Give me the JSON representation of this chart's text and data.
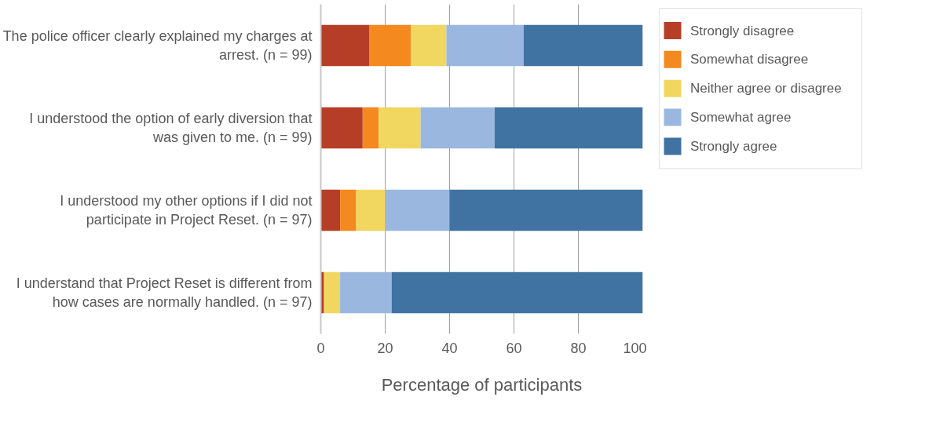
{
  "chart_data": {
    "type": "bar",
    "orientation": "horizontal",
    "stacked": true,
    "categories": [
      "The police officer clearly explained my charges at\narrest. (n = 99)",
      "I understood the option of early diversion that\nwas given to me. (n = 99)",
      "I understood my other options if I did not\nparticipate in Project Reset. (n = 97)",
      "I understand that Project Reset is different from\nhow cases are normally handled. (n = 97)"
    ],
    "series": [
      {
        "name": "Strongly disagree",
        "color": "#b63e26",
        "values": [
          15,
          13,
          6,
          1
        ]
      },
      {
        "name": "Somewhat disagree",
        "color": "#f3891f",
        "values": [
          13,
          5,
          5,
          0
        ]
      },
      {
        "name": "Neither agree or disagree",
        "color": "#f1d75f",
        "values": [
          11,
          13,
          9,
          5
        ]
      },
      {
        "name": "Somewhat agree",
        "color": "#9ab8df",
        "values": [
          24,
          23,
          20,
          16
        ]
      },
      {
        "name": "Strongly agree",
        "color": "#4073a1",
        "values": [
          37,
          46,
          60,
          78
        ]
      }
    ],
    "xlim": [
      0,
      100
    ],
    "xticks": [
      0,
      20,
      40,
      60,
      80,
      100
    ],
    "xlabel": "Percentage of participants",
    "grid": "x",
    "legend": "right"
  }
}
